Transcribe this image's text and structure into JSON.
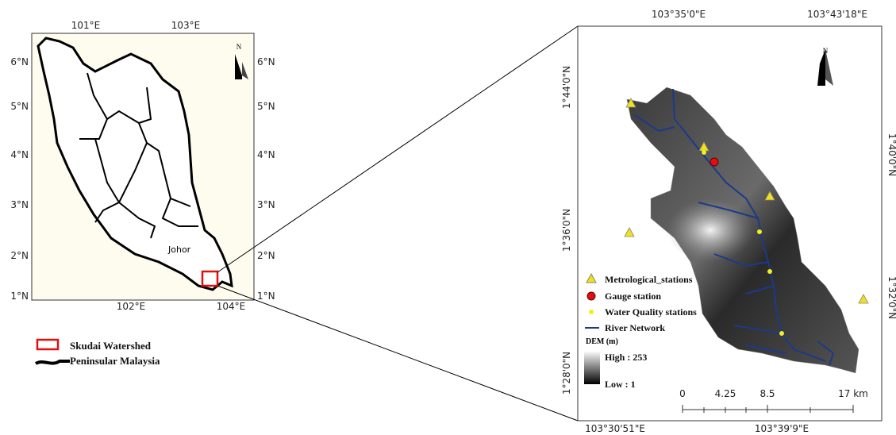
{
  "left_map": {
    "top_labels": [
      "101°E",
      "103°E"
    ],
    "bottom_labels": [
      "102°E",
      "104°E"
    ],
    "left_labels": [
      "6°N",
      "5°N",
      "4°N",
      "3°N",
      "2°N",
      "1°N"
    ],
    "right_labels": [
      "6°N",
      "5°N",
      "4°N",
      "3°N",
      "2°N",
      "1°N"
    ],
    "north": "N",
    "region_label": "Johor"
  },
  "legend": {
    "items": [
      "Skudai Watershed",
      "Peninsular Malaysia"
    ]
  },
  "right_map": {
    "top_labels": [
      "103°35'0\"E",
      "103°43'18\"E"
    ],
    "bottom_labels": [
      "103°30'51\"E",
      "103°39'9\"E"
    ],
    "left_labels": [
      "1°44'0\"N",
      "1°36'0\"N",
      "1°28'0\"N"
    ],
    "right_labels": [
      "1°40'0\"N",
      "1°32'0\"N"
    ],
    "north": "N",
    "legend": {
      "items": [
        "Metrological_stations",
        "Gauge station",
        "Water Quality stations",
        "River Network"
      ],
      "dem_title": "DEM (m)",
      "dem_high": "High : 253",
      "dem_low": "Low : 1"
    },
    "scale_labels": [
      "0",
      "4.25",
      "8.5",
      "17 km"
    ]
  }
}
